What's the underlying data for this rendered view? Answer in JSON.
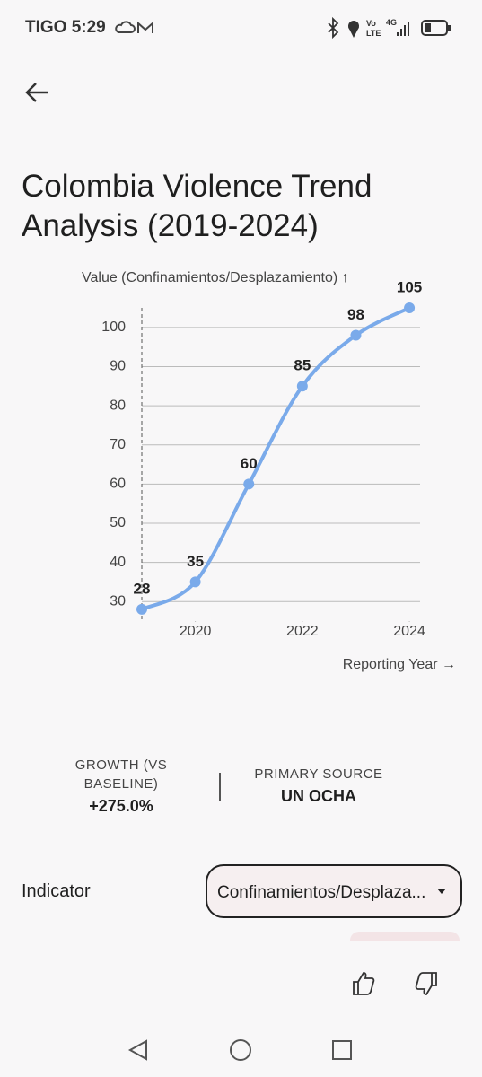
{
  "status_bar": {
    "carrier_time": "TIGO 5:29"
  },
  "header": {
    "title": "Colombia Violence Trend Analysis (2019-2024)"
  },
  "chart_data": {
    "type": "line",
    "y_label": "Value (Confinamientos/Desplazamiento) ↑",
    "x_label": "Reporting Year →",
    "x": [
      2019,
      2020,
      2021,
      2022,
      2023,
      2024
    ],
    "series": [
      {
        "name": "Confinamientos/Desplazamiento",
        "color": "#7aaaea",
        "values": [
          28,
          35,
          60,
          85,
          98,
          105
        ]
      }
    ],
    "xlim": [
      2019,
      2024.2
    ],
    "xticks": [
      2020,
      2022,
      2024
    ],
    "ylim": [
      25,
      105
    ],
    "yticks": [
      30,
      40,
      50,
      60,
      70,
      80,
      90,
      100
    ],
    "grid": true
  },
  "stats": [
    {
      "label": "GROWTH (VS BASELINE)",
      "value": "+275.0%"
    },
    {
      "label": "PRIMARY SOURCE",
      "value": "UN OCHA"
    }
  ],
  "indicator": {
    "label": "Indicator",
    "selected": "Confinamientos/Desplaza..."
  }
}
